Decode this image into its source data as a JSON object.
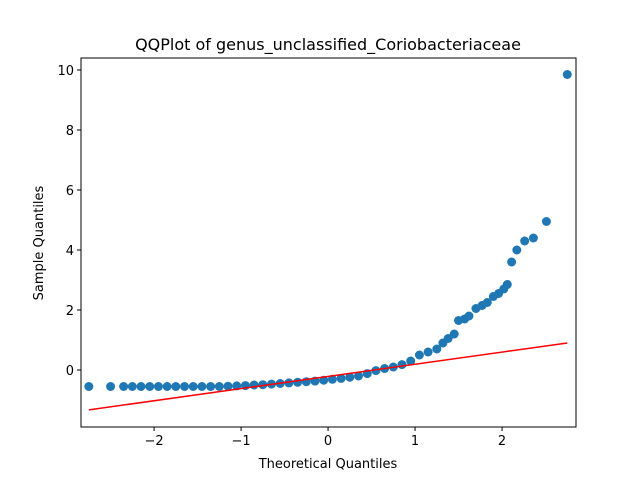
{
  "chart_data": {
    "type": "scatter",
    "title": "QQPlot of genus_unclassified_Coriobacteriaceae",
    "xlabel": "Theoretical Quantiles",
    "ylabel": "Sample Quantiles",
    "xlim": [
      -2.84,
      2.85
    ],
    "ylim": [
      -1.9,
      10.4
    ],
    "xticks": [
      {
        "value": -2,
        "label": "−2"
      },
      {
        "value": -1,
        "label": "−1"
      },
      0,
      1,
      2
    ],
    "yticks": [
      0,
      2,
      4,
      6,
      8,
      10
    ],
    "points": {
      "color": "#1f77b4",
      "x": [
        -2.75,
        -2.5,
        -2.35,
        -2.25,
        -2.15,
        -2.05,
        -1.95,
        -1.85,
        -1.75,
        -1.65,
        -1.55,
        -1.45,
        -1.35,
        -1.25,
        -1.15,
        -1.05,
        -0.95,
        -0.85,
        -0.75,
        -0.65,
        -0.55,
        -0.45,
        -0.35,
        -0.25,
        -0.15,
        -0.05,
        0.05,
        0.15,
        0.25,
        0.35,
        0.45,
        0.55,
        0.65,
        0.75,
        0.85,
        0.95,
        1.05,
        1.15,
        1.25,
        1.32,
        1.38,
        1.45,
        1.5,
        1.57,
        1.62,
        1.7,
        1.77,
        1.83,
        1.9,
        1.96,
        2.02,
        2.06,
        2.11,
        2.17,
        2.26,
        2.36,
        2.51,
        2.75
      ],
      "y": [
        -0.55,
        -0.55,
        -0.55,
        -0.55,
        -0.55,
        -0.55,
        -0.55,
        -0.55,
        -0.55,
        -0.55,
        -0.55,
        -0.55,
        -0.55,
        -0.55,
        -0.54,
        -0.53,
        -0.52,
        -0.5,
        -0.49,
        -0.47,
        -0.45,
        -0.43,
        -0.41,
        -0.39,
        -0.37,
        -0.34,
        -0.31,
        -0.28,
        -0.24,
        -0.2,
        -0.12,
        -0.02,
        0.05,
        0.1,
        0.18,
        0.3,
        0.5,
        0.6,
        0.7,
        0.9,
        1.05,
        1.2,
        1.65,
        1.7,
        1.8,
        2.05,
        2.15,
        2.25,
        2.45,
        2.55,
        2.7,
        2.85,
        3.6,
        4.0,
        4.3,
        4.4,
        4.95,
        9.85
      ]
    },
    "fit_line": {
      "color": "#ff0000",
      "x": [
        -2.75,
        2.75
      ],
      "y": [
        -1.33,
        0.9
      ]
    }
  }
}
